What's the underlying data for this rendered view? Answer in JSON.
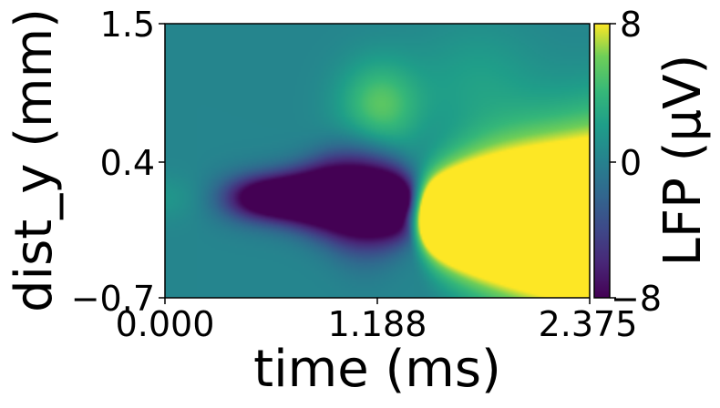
{
  "chart_data": {
    "type": "heatmap",
    "title": "",
    "xlabel": "time (ms)",
    "ylabel": "dist_y (mm)",
    "xlim": [
      0.0,
      2.375
    ],
    "ylim": [
      -0.7,
      1.5
    ],
    "x_ticks": [
      "0.000",
      "1.188",
      "2.375"
    ],
    "y_ticks": [
      "1.5",
      "0.4",
      "−0.7"
    ],
    "colorbar": {
      "label": "LFP (μV)",
      "range": [
        -8,
        8
      ],
      "ticks": [
        "8",
        "0",
        "−8"
      ],
      "colormap": "viridis"
    },
    "features": [
      {
        "name": "negative trough",
        "time_range_ms": [
          0.3,
          1.4
        ],
        "dist_y_range_mm": [
          -0.3,
          0.3
        ],
        "value_uV": -8
      },
      {
        "name": "positive plateau",
        "time_range_ms": [
          1.4,
          2.375
        ],
        "dist_y_range_mm": [
          -0.5,
          0.5
        ],
        "value_uV": 8
      },
      {
        "name": "moderate positive lobe",
        "time_range_ms": [
          1.0,
          1.6
        ],
        "dist_y_range_mm": [
          0.5,
          1.2
        ],
        "value_uV": 4
      }
    ],
    "grid": false
  }
}
